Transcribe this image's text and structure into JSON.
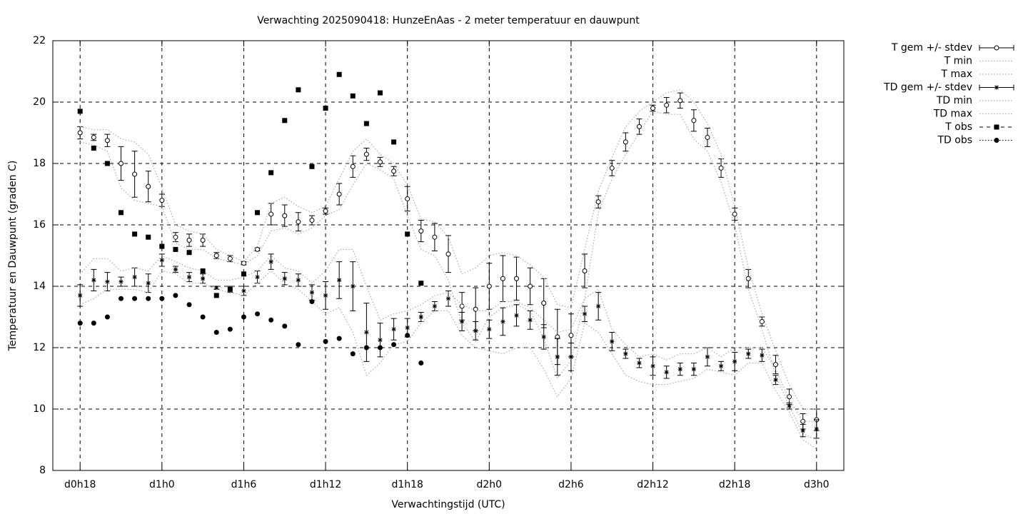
{
  "chart_data": {
    "type": "scatter",
    "title": "Verwachting 2025090418: HunzeEnAas - 2 meter temperatuur en dauwpunt",
    "x_label": "Verwachtingstijd (UTC)",
    "y_label": "Temperatuur en Dauwpunt (graden C)",
    "xlim": [
      16,
      74
    ],
    "ylim": [
      8,
      22
    ],
    "xticks": [
      {
        "value": 18,
        "label": "d0h18"
      },
      {
        "value": 24,
        "label": "d1h0"
      },
      {
        "value": 30,
        "label": "d1h6"
      },
      {
        "value": 36,
        "label": "d1h12"
      },
      {
        "value": 42,
        "label": "d1h18"
      },
      {
        "value": 48,
        "label": "d2h0"
      },
      {
        "value": 54,
        "label": "d2h6"
      },
      {
        "value": 60,
        "label": "d2h12"
      },
      {
        "value": 66,
        "label": "d2h18"
      },
      {
        "value": 72,
        "label": "d3h0"
      }
    ],
    "yticks": [
      8,
      10,
      12,
      14,
      16,
      18,
      20,
      22
    ],
    "grid": true,
    "legend": "outside-right",
    "x": [
      18,
      19,
      20,
      21,
      22,
      23,
      24,
      25,
      26,
      27,
      28,
      29,
      30,
      31,
      32,
      33,
      34,
      35,
      36,
      37,
      38,
      39,
      40,
      41,
      42,
      43,
      44,
      45,
      46,
      47,
      48,
      49,
      50,
      51,
      52,
      53,
      54,
      55,
      56,
      57,
      58,
      59,
      60,
      61,
      62,
      63,
      64,
      65,
      66,
      67,
      68,
      69,
      70,
      71,
      72
    ],
    "series": [
      {
        "name": "T gem +/- stdev",
        "style": "errorbar-circle",
        "color": "#000000",
        "values": [
          19.0,
          18.85,
          18.75,
          18.0,
          17.65,
          17.25,
          16.8,
          15.6,
          15.5,
          15.5,
          15.0,
          14.9,
          14.75,
          15.2,
          16.35,
          16.3,
          16.1,
          16.15,
          16.45,
          17.0,
          17.9,
          18.3,
          18.05,
          17.75,
          16.85,
          15.8,
          15.6,
          15.05,
          13.35,
          13.25,
          14.0,
          14.25,
          14.25,
          14.0,
          13.45,
          12.35,
          12.4,
          14.5,
          16.75,
          17.85,
          18.7,
          19.2,
          19.8,
          19.9,
          20.05,
          19.4,
          18.85,
          17.85,
          16.35,
          14.25,
          12.85,
          11.45,
          10.4,
          9.6,
          9.65
        ],
        "errors": [
          0.2,
          0.1,
          0.2,
          0.55,
          0.75,
          0.5,
          0.2,
          0.15,
          0.2,
          0.2,
          0.1,
          0.1,
          0.05,
          0.05,
          0.35,
          0.35,
          0.3,
          0.15,
          0.1,
          0.35,
          0.35,
          0.2,
          0.15,
          0.15,
          0.4,
          0.35,
          0.45,
          0.6,
          0.45,
          0.7,
          0.75,
          0.75,
          0.7,
          0.6,
          0.8,
          0.9,
          0.7,
          0.55,
          0.2,
          0.25,
          0.3,
          0.25,
          0.1,
          0.25,
          0.25,
          0.35,
          0.3,
          0.3,
          0.2,
          0.3,
          0.15,
          0.3,
          0.25,
          0.25,
          0.35
        ]
      },
      {
        "name": "T min",
        "style": "dotted",
        "color": "#aaaaaa",
        "values": [
          18.7,
          18.6,
          18.4,
          17.2,
          16.8,
          16.7,
          16.6,
          15.4,
          15.2,
          15.2,
          14.9,
          14.8,
          14.7,
          15.0,
          15.8,
          15.9,
          15.7,
          15.9,
          16.3,
          16.5,
          17.3,
          18.0,
          17.8,
          17.5,
          16.3,
          15.2,
          15.0,
          14.2,
          12.8,
          12.2,
          13.0,
          13.3,
          13.4,
          13.2,
          12.3,
          11.0,
          11.6,
          13.6,
          16.4,
          17.5,
          18.3,
          19.0,
          19.7,
          19.6,
          19.6,
          18.8,
          18.4,
          17.4,
          16.0,
          13.9,
          12.6,
          11.1,
          10.1,
          9.2,
          9.0
        ]
      },
      {
        "name": "T max",
        "style": "dotted",
        "color": "#aaaaaa",
        "values": [
          19.2,
          19.1,
          19.1,
          18.8,
          18.7,
          18.3,
          17.2,
          16.0,
          15.8,
          15.7,
          15.2,
          15.0,
          14.8,
          15.3,
          16.7,
          16.9,
          16.6,
          16.4,
          16.6,
          17.5,
          18.4,
          18.8,
          18.3,
          18.0,
          17.3,
          16.2,
          16.1,
          15.6,
          14.4,
          14.6,
          15.0,
          15.1,
          15.0,
          14.7,
          14.3,
          13.4,
          13.3,
          15.2,
          17.1,
          18.2,
          19.2,
          19.7,
          20.0,
          20.3,
          20.4,
          20.0,
          19.3,
          18.3,
          16.6,
          14.6,
          13.1,
          11.9,
          10.8,
          10.0,
          10.0
        ]
      },
      {
        "name": "TD gem +/- stdev",
        "style": "errorbar-star",
        "color": "#000000",
        "values": [
          13.7,
          14.2,
          14.15,
          14.15,
          14.3,
          14.1,
          14.85,
          14.55,
          14.3,
          14.25,
          13.95,
          13.9,
          13.85,
          14.3,
          14.8,
          14.25,
          14.2,
          13.8,
          13.7,
          14.2,
          14.0,
          12.5,
          12.25,
          12.6,
          12.65,
          13.0,
          13.35,
          13.6,
          12.85,
          12.55,
          12.6,
          12.85,
          13.05,
          12.9,
          12.35,
          11.7,
          11.7,
          13.1,
          13.35,
          12.2,
          11.8,
          11.5,
          11.4,
          11.2,
          11.3,
          11.3,
          11.7,
          11.4,
          11.55,
          11.8,
          11.75,
          10.95,
          10.1,
          9.3,
          9.35
        ],
        "errors": [
          0.35,
          0.35,
          0.3,
          0.15,
          0.3,
          0.3,
          0.2,
          0.1,
          0.15,
          0.15,
          0.05,
          0.1,
          0.15,
          0.2,
          0.25,
          0.2,
          0.2,
          0.25,
          0.45,
          0.6,
          0.8,
          0.95,
          0.55,
          0.35,
          0.3,
          0.15,
          0.15,
          0.25,
          0.3,
          0.3,
          0.3,
          0.45,
          0.35,
          0.3,
          0.4,
          0.6,
          0.45,
          0.25,
          0.45,
          0.3,
          0.15,
          0.15,
          0.3,
          0.2,
          0.2,
          0.2,
          0.3,
          0.15,
          0.3,
          0.15,
          0.2,
          0.15,
          0.1,
          0.2,
          0.3
        ]
      },
      {
        "name": "TD min",
        "style": "dotted",
        "color": "#aaaaaa",
        "values": [
          13.4,
          13.6,
          13.9,
          13.9,
          13.9,
          13.8,
          14.5,
          14.4,
          14.1,
          14.1,
          13.9,
          13.8,
          13.7,
          14.1,
          14.5,
          14.1,
          13.9,
          13.5,
          13.1,
          13.3,
          12.5,
          11.1,
          11.5,
          12.1,
          12.2,
          12.8,
          13.2,
          13.2,
          12.4,
          12.0,
          11.9,
          11.8,
          12.0,
          12.0,
          11.3,
          10.4,
          11.0,
          12.8,
          12.5,
          11.8,
          11.1,
          10.9,
          10.8,
          10.8,
          10.9,
          11.0,
          11.3,
          11.2,
          11.1,
          11.5,
          11.5,
          10.6,
          9.9,
          9.0,
          8.7
        ]
      },
      {
        "name": "TD max",
        "style": "dotted",
        "color": "#aaaaaa",
        "values": [
          14.4,
          14.9,
          14.9,
          14.5,
          14.6,
          14.5,
          15.0,
          14.8,
          14.6,
          14.5,
          14.2,
          14.2,
          14.3,
          14.5,
          15.0,
          14.6,
          14.5,
          14.1,
          14.5,
          15.2,
          15.2,
          14.0,
          12.9,
          13.1,
          13.2,
          13.4,
          13.7,
          13.8,
          13.4,
          13.2,
          13.2,
          13.5,
          13.5,
          13.3,
          12.9,
          12.5,
          12.6,
          13.6,
          13.9,
          12.6,
          12.1,
          11.7,
          11.8,
          11.6,
          11.8,
          11.8,
          12.0,
          11.7,
          12.0,
          12.0,
          12.0,
          11.3,
          10.3,
          9.6,
          9.6
        ]
      },
      {
        "name": "T obs",
        "style": "square",
        "color": "#000000",
        "values": [
          19.7,
          18.5,
          18.0,
          16.4,
          15.7,
          15.6,
          15.3,
          15.2,
          15.1,
          14.5,
          13.7,
          13.9,
          14.4,
          16.4,
          17.7,
          19.4,
          20.4,
          17.9,
          19.8,
          20.9,
          20.2,
          19.3,
          20.3,
          18.7,
          15.7,
          14.1,
          null,
          null,
          null,
          null,
          null,
          null,
          null,
          null,
          null,
          null,
          null,
          null,
          null,
          null,
          null,
          null,
          null,
          null,
          null,
          null,
          null,
          null,
          null,
          null,
          null,
          null,
          null,
          null,
          null
        ]
      },
      {
        "name": "TD obs",
        "style": "dot",
        "color": "#000000",
        "values": [
          12.8,
          12.8,
          13.0,
          13.6,
          13.6,
          13.6,
          13.6,
          13.7,
          13.4,
          13.0,
          12.5,
          12.6,
          13.0,
          13.1,
          12.9,
          12.7,
          12.1,
          13.5,
          12.2,
          12.3,
          11.8,
          12.0,
          12.0,
          12.1,
          12.4,
          11.5,
          null,
          null,
          null,
          null,
          null,
          null,
          null,
          null,
          null,
          null,
          null,
          null,
          null,
          null,
          null,
          null,
          null,
          null,
          null,
          null,
          null,
          null,
          null,
          null,
          null,
          null,
          null,
          null,
          null
        ]
      }
    ]
  }
}
